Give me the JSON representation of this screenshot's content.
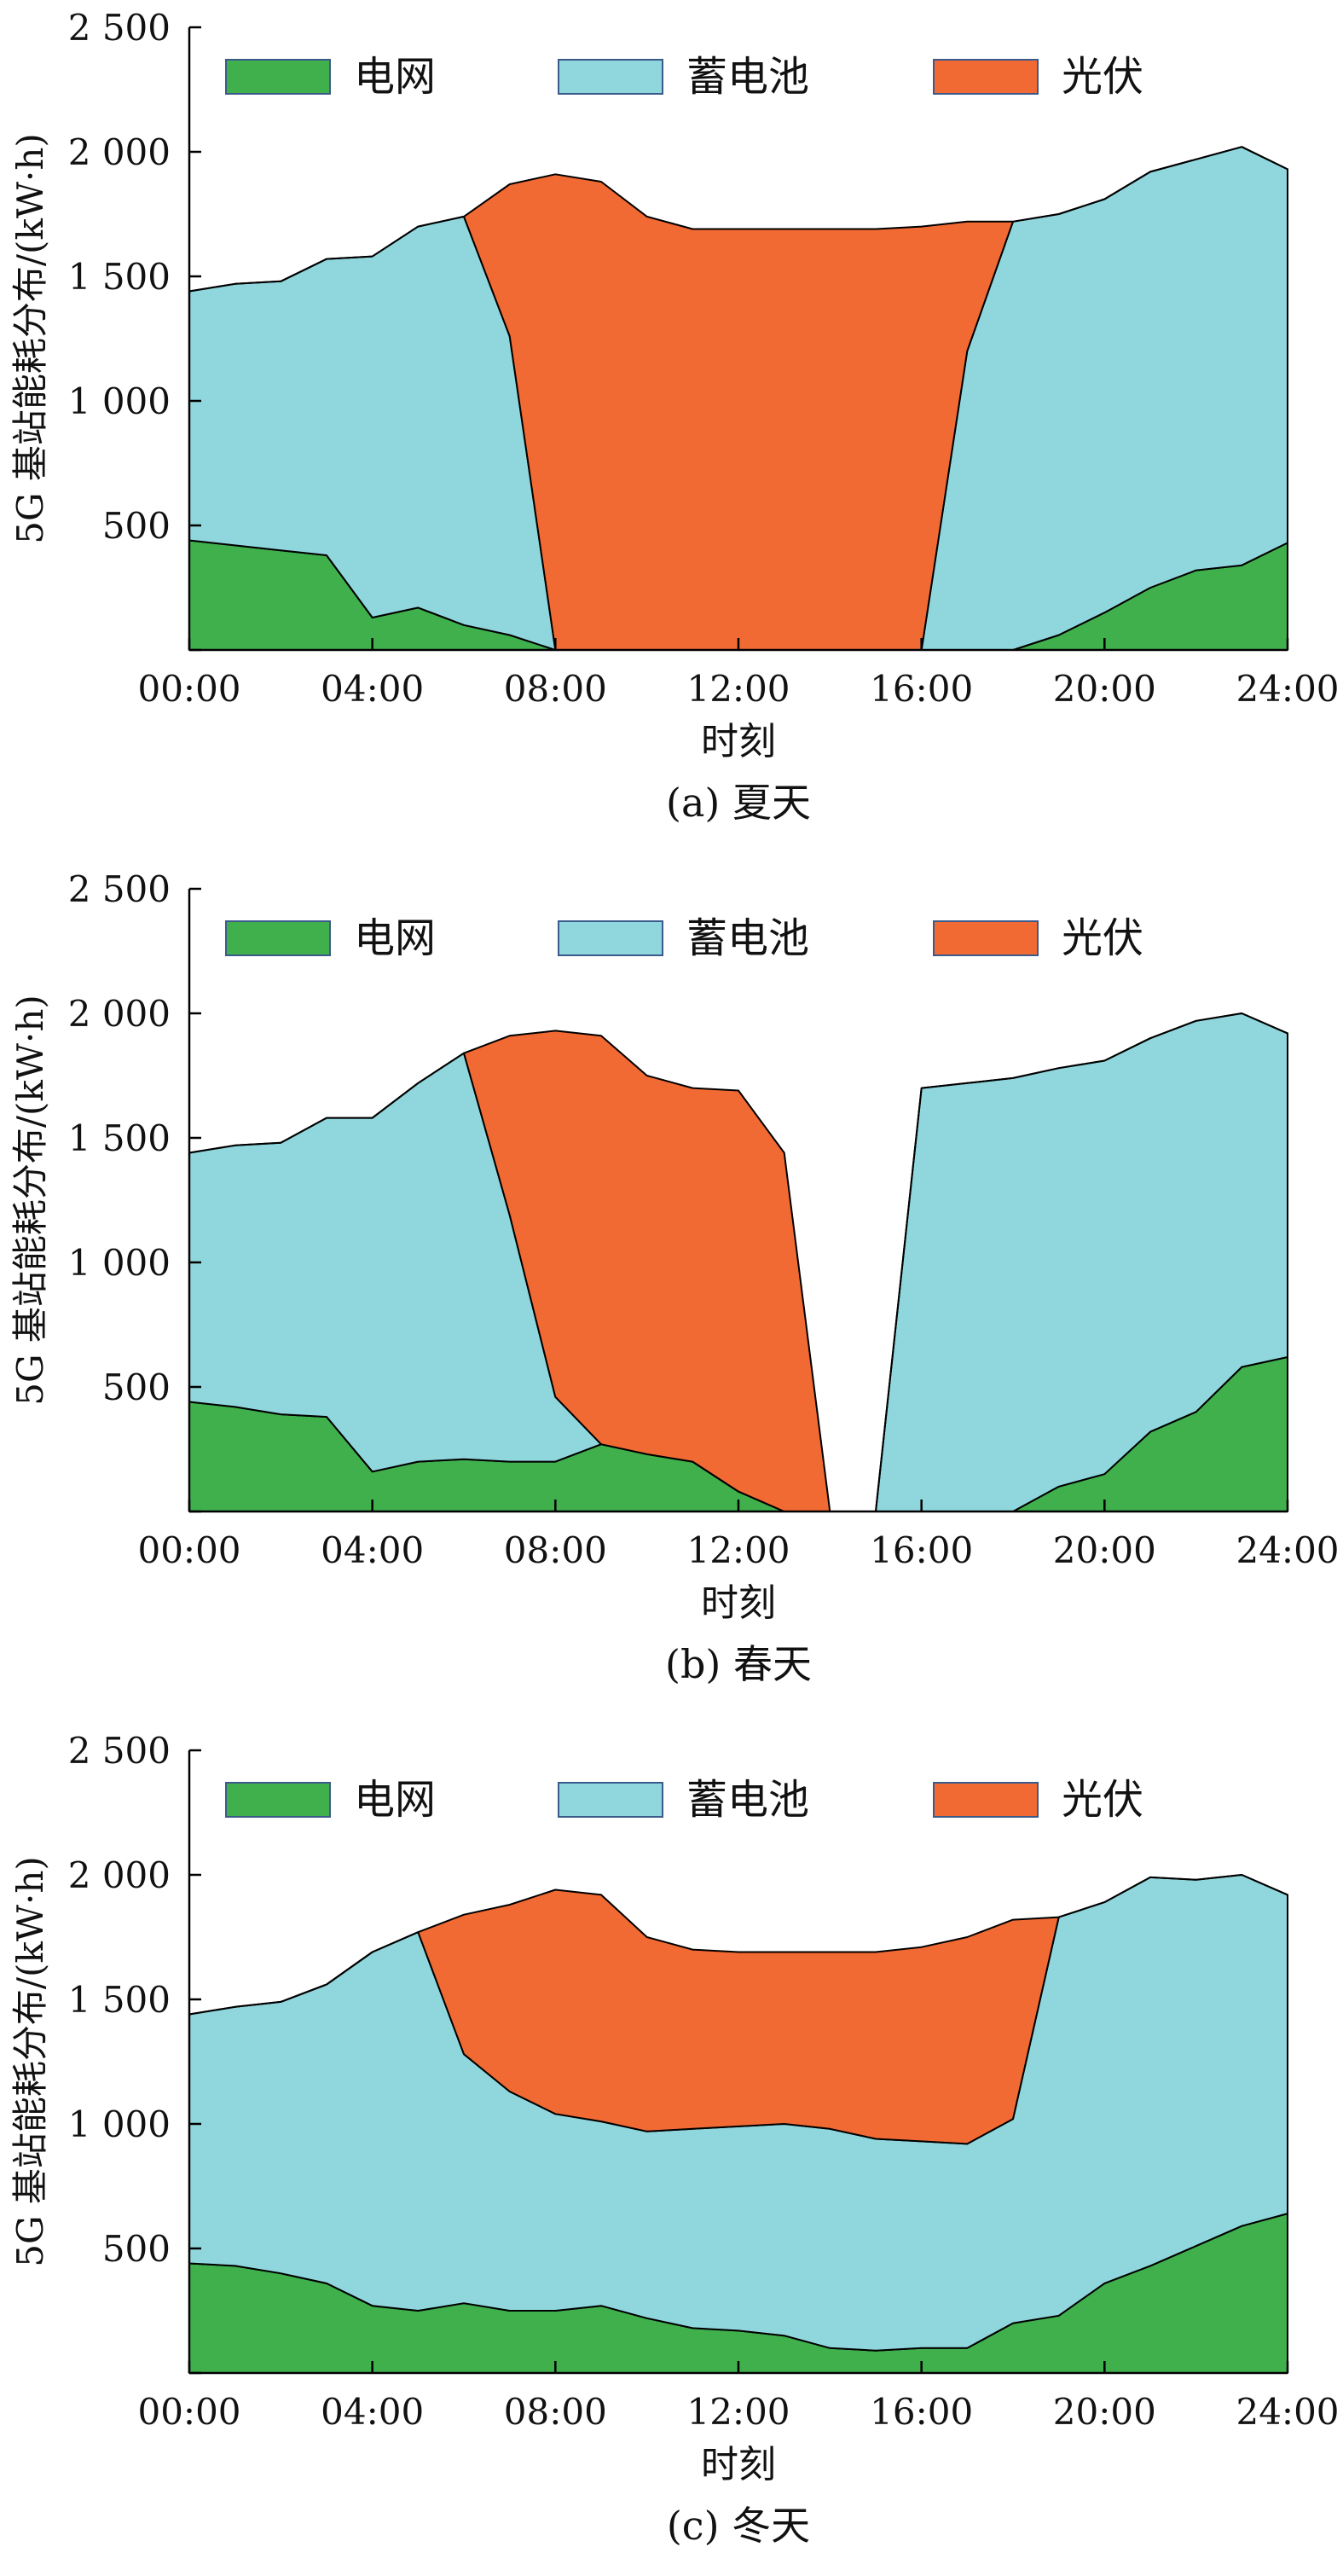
{
  "figure": {
    "y_axis_label": "5G 基站能耗分布/(kW·h)",
    "x_axis_label": "时刻",
    "legend": [
      "电网",
      "蓄电池",
      "光伏"
    ]
  },
  "colors": {
    "grid_series": "#40b04c",
    "battery": "#90d7dd",
    "pv": "#f26a33",
    "axis": "#000000"
  },
  "chart_data": [
    {
      "type": "area",
      "title": "(a) 夏天",
      "xlabel": "时刻",
      "ylabel": "5G 基站能耗分布/(kW·h)",
      "xlim": [
        0,
        24
      ],
      "ylim": [
        0,
        2500
      ],
      "x_ticks": [
        "00:00",
        "04:00",
        "08:00",
        "12:00",
        "16:00",
        "20:00",
        "24:00"
      ],
      "y_ticks": [
        "",
        "500",
        "1 000",
        "1 500",
        "2 000",
        "2 500"
      ],
      "x": [
        0,
        1,
        2,
        3,
        4,
        5,
        6,
        7,
        8,
        9,
        10,
        11,
        12,
        13,
        14,
        15,
        16,
        17,
        18,
        19,
        20,
        21,
        22,
        23,
        24
      ],
      "series": [
        {
          "name": "电网",
          "values": [
            440,
            420,
            400,
            380,
            130,
            170,
            100,
            60,
            0,
            0,
            0,
            0,
            0,
            0,
            0,
            0,
            0,
            0,
            0,
            60,
            150,
            250,
            320,
            340,
            430
          ]
        },
        {
          "name": "蓄电池",
          "values": [
            1000,
            1050,
            1080,
            1190,
            1450,
            1530,
            1640,
            1200,
            0,
            0,
            0,
            0,
            0,
            0,
            0,
            0,
            0,
            1200,
            1720,
            1690,
            1660,
            1670,
            1650,
            1680,
            1500
          ]
        },
        {
          "name": "光伏",
          "values": [
            0,
            0,
            0,
            0,
            0,
            0,
            0,
            610,
            1910,
            1880,
            1740,
            1690,
            1690,
            1690,
            1690,
            1690,
            1700,
            520,
            0,
            0,
            0,
            0,
            0,
            0,
            0
          ]
        }
      ]
    },
    {
      "type": "area",
      "title": "(b) 春天",
      "xlabel": "时刻",
      "ylabel": "5G 基站能耗分布/(kW·h)",
      "xlim": [
        0,
        24
      ],
      "ylim": [
        0,
        2500
      ],
      "x_ticks": [
        "00:00",
        "04:00",
        "08:00",
        "12:00",
        "16:00",
        "20:00",
        "24:00"
      ],
      "y_ticks": [
        "",
        "500",
        "1 000",
        "1 500",
        "2 000",
        "2 500"
      ],
      "x": [
        0,
        1,
        2,
        3,
        4,
        5,
        6,
        7,
        8,
        9,
        10,
        11,
        12,
        13,
        14,
        15,
        16,
        17,
        18,
        19,
        20,
        21,
        22,
        23,
        24
      ],
      "series": [
        {
          "name": "电网",
          "values": [
            440,
            420,
            390,
            380,
            160,
            200,
            210,
            200,
            200,
            270,
            230,
            200,
            80,
            0,
            0,
            0,
            0,
            0,
            0,
            100,
            150,
            320,
            400,
            580,
            620
          ]
        },
        {
          "name": "蓄电池",
          "values": [
            1000,
            1050,
            1090,
            1200,
            1420,
            1520,
            1630,
            990,
            260,
            0,
            0,
            0,
            0,
            0,
            0,
            0,
            1700,
            1720,
            1740,
            1680,
            1660,
            1580,
            1570,
            1420,
            1300
          ]
        },
        {
          "name": "光伏",
          "values": [
            0,
            0,
            0,
            0,
            0,
            0,
            0,
            720,
            1470,
            1640,
            1520,
            1500,
            1610,
            1440,
            0,
            0,
            0,
            0,
            0,
            0,
            0,
            0,
            0,
            0,
            0
          ]
        }
      ]
    },
    {
      "type": "area",
      "title": "(c) 冬天",
      "xlabel": "时刻",
      "ylabel": "5G 基站能耗分布/(kW·h)",
      "xlim": [
        0,
        24
      ],
      "ylim": [
        0,
        2500
      ],
      "x_ticks": [
        "00:00",
        "04:00",
        "08:00",
        "12:00",
        "16:00",
        "20:00",
        "24:00"
      ],
      "y_ticks": [
        "",
        "500",
        "1 000",
        "1 500",
        "2 000",
        "2 500"
      ],
      "x": [
        0,
        1,
        2,
        3,
        4,
        5,
        6,
        7,
        8,
        9,
        10,
        11,
        12,
        13,
        14,
        15,
        16,
        17,
        18,
        19,
        20,
        21,
        22,
        23,
        24
      ],
      "series": [
        {
          "name": "电网",
          "values": [
            440,
            430,
            400,
            360,
            270,
            250,
            280,
            250,
            250,
            270,
            220,
            180,
            170,
            150,
            100,
            90,
            100,
            100,
            200,
            230,
            360,
            430,
            510,
            590,
            640
          ]
        },
        {
          "name": "蓄电池",
          "values": [
            1000,
            1040,
            1090,
            1200,
            1420,
            1520,
            1000,
            880,
            790,
            740,
            750,
            800,
            820,
            850,
            880,
            850,
            830,
            820,
            820,
            1600,
            1530,
            1560,
            1470,
            1410,
            1280
          ]
        },
        {
          "name": "光伏",
          "values": [
            0,
            0,
            0,
            0,
            0,
            0,
            560,
            750,
            900,
            910,
            780,
            720,
            700,
            690,
            710,
            750,
            780,
            830,
            800,
            0,
            0,
            0,
            0,
            0,
            0
          ]
        }
      ]
    }
  ]
}
